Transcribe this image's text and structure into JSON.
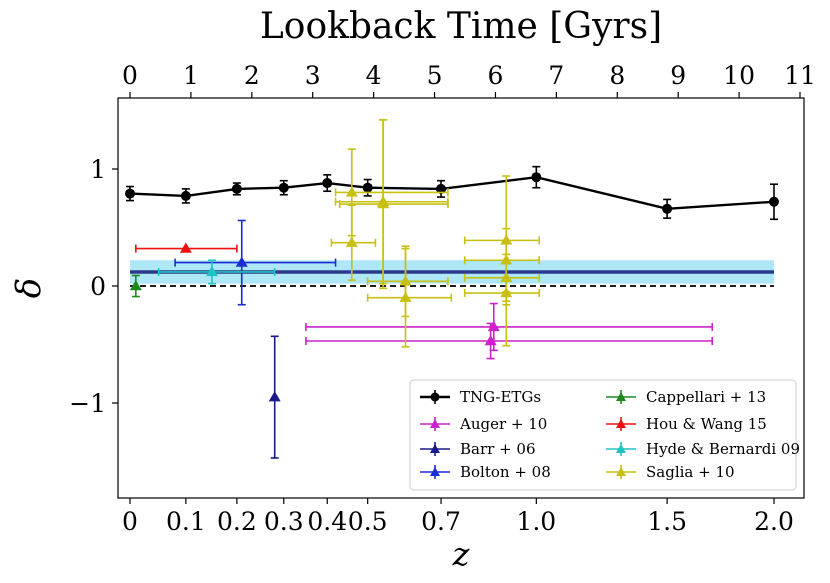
{
  "chart_data": {
    "type": "scatter",
    "title": "",
    "xlabel": "z",
    "ylabel": "δ",
    "top_xlabel": "Lookback Time [Gyrs]",
    "x_ticks": [
      "0",
      "0.1",
      "0.2",
      "0.3",
      "0.4",
      "0.5",
      "0.7",
      "1.0",
      "1.5",
      "2.0"
    ],
    "x_tick_values": [
      0,
      0.1,
      0.2,
      0.3,
      0.4,
      0.5,
      0.7,
      1.0,
      1.5,
      2.0
    ],
    "top_ticks": [
      "0",
      "1",
      "2",
      "3",
      "4",
      "5",
      "6",
      "7",
      "8",
      "9",
      "10",
      "11"
    ],
    "top_tick_values": [
      0,
      1,
      2,
      3,
      4,
      5,
      6,
      7,
      8,
      9,
      10,
      11
    ],
    "y_ticks": [
      "1",
      "0",
      "−1"
    ],
    "y_tick_values": [
      1,
      0,
      -1
    ],
    "ylim": [
      -1.8,
      1.6
    ],
    "x_axis_note": "x axis is linear in log10(1+z)",
    "reference_line": {
      "y": 0,
      "style": "dashed",
      "color": "#000000"
    },
    "mean_band": {
      "value": 0.12,
      "lower": 0.02,
      "upper": 0.22,
      "line_color": "#2b3a8c",
      "band_color": "#aee7f6"
    },
    "legend_position": "lower-right",
    "series": [
      {
        "name": "TNG-ETGs",
        "label": "TNG-ETGs",
        "color": "#000000",
        "marker": "circle",
        "line": true,
        "points": [
          {
            "z": 0.0,
            "y": 0.79,
            "yerr": 0.06
          },
          {
            "z": 0.1,
            "y": 0.77,
            "yerr": 0.06
          },
          {
            "z": 0.2,
            "y": 0.83,
            "yerr": 0.05
          },
          {
            "z": 0.3,
            "y": 0.84,
            "yerr": 0.06
          },
          {
            "z": 0.4,
            "y": 0.88,
            "yerr": 0.07
          },
          {
            "z": 0.5,
            "y": 0.84,
            "yerr": 0.07
          },
          {
            "z": 0.7,
            "y": 0.83,
            "yerr": 0.07
          },
          {
            "z": 1.0,
            "y": 0.93,
            "yerr": 0.09
          },
          {
            "z": 1.5,
            "y": 0.66,
            "yerr": 0.08
          },
          {
            "z": 2.0,
            "y": 0.72,
            "yerr": 0.15
          }
        ]
      },
      {
        "name": "Auger+10",
        "label": "Auger + 10",
        "color": "#cc22cc",
        "marker": "triangle",
        "points": [
          {
            "z": 0.86,
            "y": -0.35,
            "yerr": 0.2,
            "xlo": 0.35,
            "xhi": 1.7
          },
          {
            "z": 0.85,
            "y": -0.47,
            "yerr": 0.15,
            "xlo": 0.35,
            "xhi": 1.7
          }
        ]
      },
      {
        "name": "Barr+06",
        "label": "Barr + 06",
        "color": "#1a1a8a",
        "marker": "triangle",
        "points": [
          {
            "z": 0.28,
            "y": -0.95,
            "yerr": 0.52
          }
        ]
      },
      {
        "name": "Bolton+08",
        "label": "Bolton + 08",
        "color": "#1a2bd8",
        "marker": "triangle",
        "points": [
          {
            "z": 0.21,
            "y": 0.2,
            "yerr": 0.36,
            "xlo": 0.08,
            "xhi": 0.42
          }
        ]
      },
      {
        "name": "Cappellari+13",
        "label": "Cappellari + 13",
        "color": "#1e8a1e",
        "marker": "triangle",
        "points": [
          {
            "z": 0.01,
            "y": 0.0,
            "yerr": 0.09
          }
        ]
      },
      {
        "name": "Hou&Wang15",
        "label": "Hou & Wang 15",
        "color": "#ee1111",
        "marker": "triangle",
        "points": [
          {
            "z": 0.1,
            "y": 0.32,
            "yerr": 0.0,
            "xlo": 0.01,
            "xhi": 0.2
          }
        ]
      },
      {
        "name": "Hyde&Bernardi09",
        "label": "Hyde & Bernardi 09",
        "color": "#1ec4c4",
        "marker": "triangle",
        "points": [
          {
            "z": 0.15,
            "y": 0.12,
            "yerr": 0.1,
            "xlo": 0.05,
            "xhi": 0.28
          }
        ]
      },
      {
        "name": "Saglia+10",
        "label": "Saglia + 10",
        "color": "#c8c010",
        "marker": "triangle",
        "points": [
          {
            "z": 0.46,
            "y": 0.8,
            "yerr": 0.37,
            "xlo": 0.42,
            "xhi": 0.72
          },
          {
            "z": 0.46,
            "y": 0.37,
            "yerr": 0.32,
            "xlo": 0.41,
            "xhi": 0.52
          },
          {
            "z": 0.54,
            "y": 0.72,
            "yerr": 0.7,
            "xlo": 0.42,
            "xhi": 0.72
          },
          {
            "z": 0.54,
            "y": 0.7,
            "yerr": 0.72,
            "xlo": 0.43,
            "xhi": 0.72
          },
          {
            "z": 0.6,
            "y": 0.04,
            "yerr": 0.3,
            "xlo": 0.5,
            "xhi": 0.72
          },
          {
            "z": 0.6,
            "y": -0.1,
            "yerr": 0.42,
            "xlo": 0.5,
            "xhi": 0.73
          },
          {
            "z": 0.9,
            "y": 0.39,
            "yerr": 0.55,
            "xlo": 0.77,
            "xhi": 1.01
          },
          {
            "z": 0.9,
            "y": 0.22,
            "yerr": 0.27,
            "xlo": 0.77,
            "xhi": 1.01
          },
          {
            "z": 0.9,
            "y": 0.07,
            "yerr": 0.2,
            "xlo": 0.77,
            "xhi": 1.01
          },
          {
            "z": 0.9,
            "y": -0.06,
            "yerr": 0.45,
            "xlo": 0.77,
            "xhi": 1.01
          }
        ]
      }
    ]
  }
}
